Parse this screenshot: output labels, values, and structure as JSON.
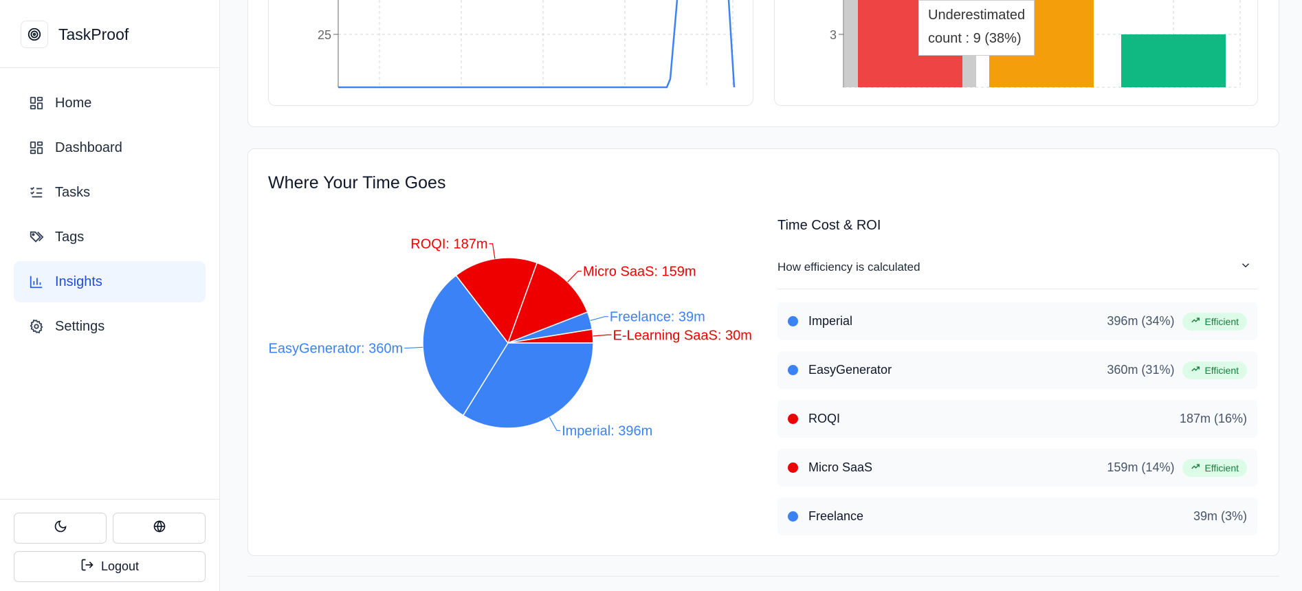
{
  "brand": {
    "name": "TaskProof"
  },
  "nav": [
    {
      "label": "Home",
      "icon": "home-icon",
      "active": false
    },
    {
      "label": "Dashboard",
      "icon": "dashboard-icon",
      "active": false
    },
    {
      "label": "Tasks",
      "icon": "tasks-icon",
      "active": false
    },
    {
      "label": "Tags",
      "icon": "tags-icon",
      "active": false
    },
    {
      "label": "Insights",
      "icon": "bar-chart-icon",
      "active": true
    },
    {
      "label": "Settings",
      "icon": "gear-icon",
      "active": false
    }
  ],
  "footer": {
    "logout_label": "Logout",
    "theme_icon": "moon-icon",
    "language_icon": "globe-icon"
  },
  "top_line_chart": {
    "y_tick": "25"
  },
  "top_bar_chart": {
    "y_tick": "3",
    "colors": [
      "#ef4444",
      "#f59e0b",
      "#10b981"
    ],
    "tooltip": {
      "category": "Underestimated",
      "line": "count : 9 (38%)"
    }
  },
  "time_section": {
    "title": "Where Your Time Goes",
    "roi_title": "Time Cost & ROI",
    "accordion_label": "How efficiency is calculated"
  },
  "chart_data": {
    "type": "pie",
    "title": "",
    "slices": [
      {
        "name": "Imperial",
        "value": 396,
        "label": "Imperial: 396m",
        "color": "#3b82f6"
      },
      {
        "name": "EasyGenerator",
        "value": 360,
        "label": "EasyGenerator: 360m",
        "color": "#3b82f6"
      },
      {
        "name": "ROQI",
        "value": 187,
        "label": "ROQI: 187m",
        "color": "#ef0000"
      },
      {
        "name": "Micro SaaS",
        "value": 159,
        "label": "Micro SaaS: 159m",
        "color": "#ef0000"
      },
      {
        "name": "Freelance",
        "value": 39,
        "label": "Freelance: 39m",
        "color": "#3b82f6"
      },
      {
        "name": "E-Learning SaaS",
        "value": 30,
        "label": "E-Learning SaaS: 30m",
        "color": "#ef0000"
      }
    ]
  },
  "roi_rows": [
    {
      "name": "Imperial",
      "value": "396m (34%)",
      "color": "#3b82f6",
      "badge": "Efficient"
    },
    {
      "name": "EasyGenerator",
      "value": "360m (31%)",
      "color": "#3b82f6",
      "badge": "Efficient"
    },
    {
      "name": "ROQI",
      "value": "187m (16%)",
      "color": "#ef0000",
      "badge": ""
    },
    {
      "name": "Micro SaaS",
      "value": "159m (14%)",
      "color": "#ef0000",
      "badge": "Efficient"
    },
    {
      "name": "Freelance",
      "value": "39m (3%)",
      "color": "#3b82f6",
      "badge": ""
    }
  ]
}
